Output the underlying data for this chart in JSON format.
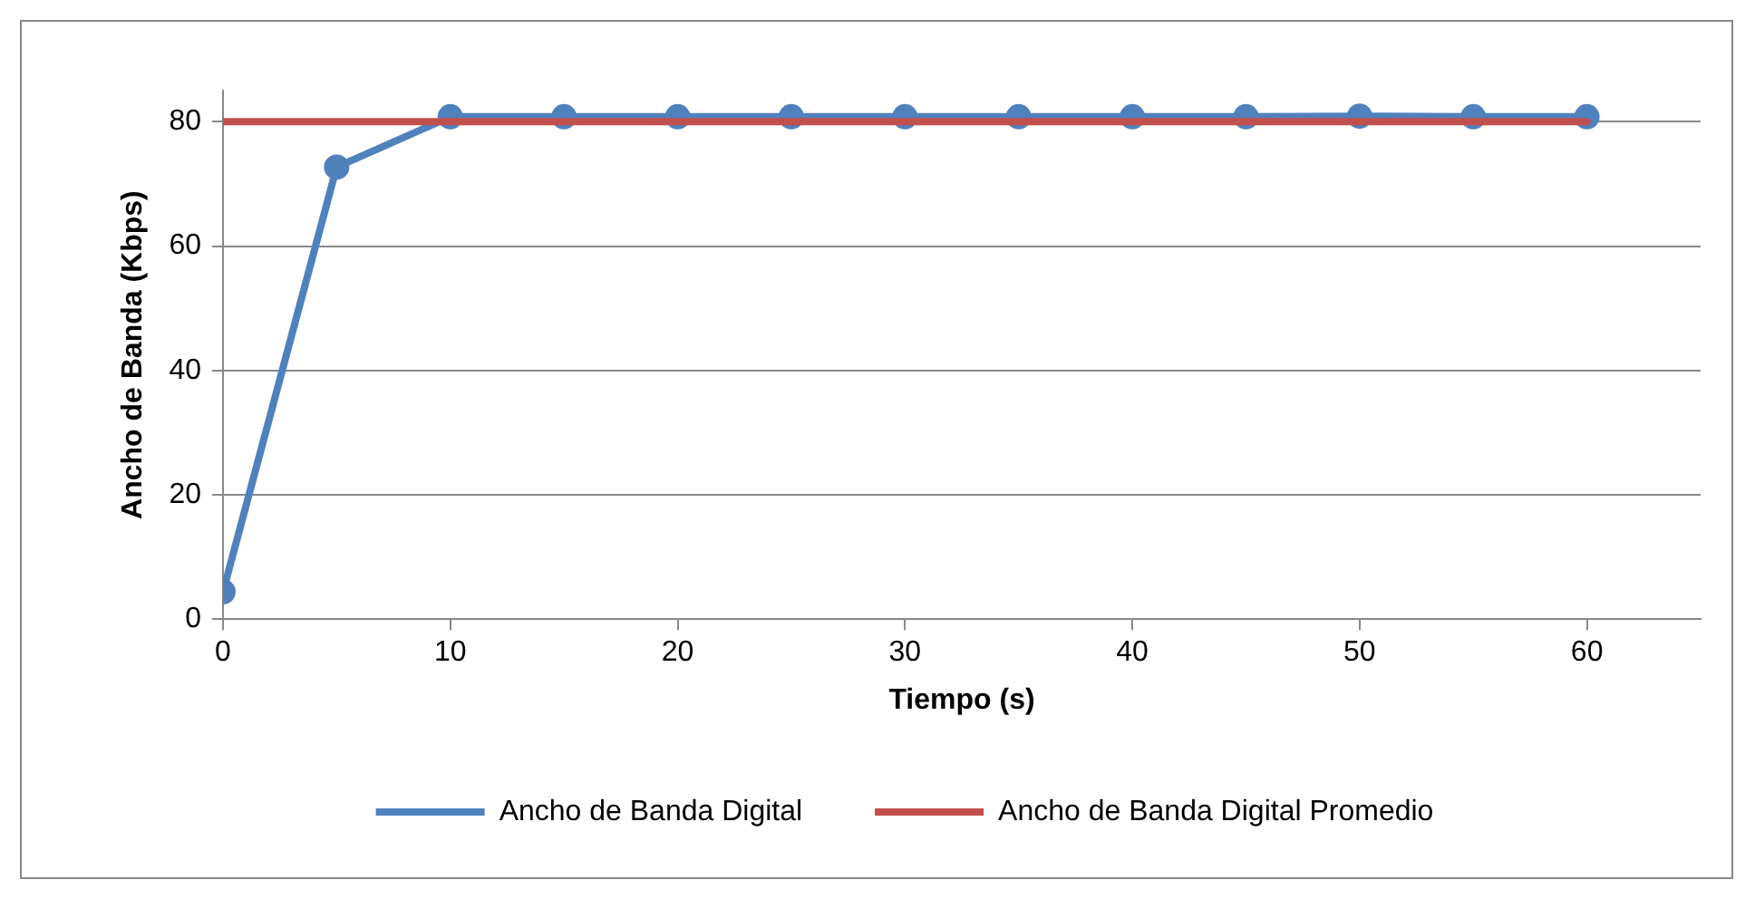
{
  "chart_data": {
    "type": "line",
    "xlabel": "Tiempo (s)",
    "ylabel": "Ancho de Banda (Kbps)",
    "x": [
      0,
      5,
      10,
      15,
      20,
      25,
      30,
      35,
      40,
      45,
      50,
      55,
      60
    ],
    "series": [
      {
        "name": "Ancho de Banda Digital",
        "color": "#4f81bd",
        "marker": "circle",
        "values": [
          4.4,
          72.7,
          80.8,
          80.8,
          80.8,
          80.8,
          80.8,
          80.8,
          80.8,
          80.8,
          80.9,
          80.8,
          80.8
        ]
      },
      {
        "name": "Ancho de Banda Digital Promedio",
        "color": "#c0504d",
        "marker": "none",
        "x": [
          0,
          60
        ],
        "values": [
          80,
          80
        ]
      }
    ],
    "xlim": [
      0,
      65
    ],
    "xticks": [
      0,
      10,
      20,
      30,
      40,
      50,
      60
    ],
    "ylim": [
      0,
      85
    ],
    "yticks": [
      0,
      20,
      40,
      60,
      80
    ],
    "grid": "y",
    "legend": "bottom"
  }
}
